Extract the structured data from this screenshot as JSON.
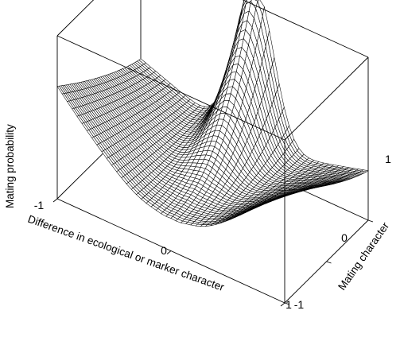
{
  "chart_data": {
    "type": "surface",
    "x_axis": {
      "label": "Difference in ecological or marker character",
      "range": [
        -1,
        1
      ],
      "ticks": [
        {
          "value": -1,
          "label": "-1"
        },
        {
          "value": 0,
          "label": "0"
        },
        {
          "value": 1,
          "label": "1"
        }
      ]
    },
    "y_axis": {
      "label": "Mating character",
      "range": [
        -1,
        1
      ],
      "ticks": [
        {
          "value": -1,
          "label": "-1"
        },
        {
          "value": 0,
          "label": "0"
        },
        {
          "value": 1,
          "label": "1"
        }
      ]
    },
    "z_axis": {
      "label": "Mating probability",
      "range": [
        0,
        1
      ]
    },
    "surface": {
      "grid_resolution": 46,
      "description_points": [
        {
          "x": -1,
          "y": 1,
          "z": 0.42
        },
        {
          "x": -1,
          "y": -1,
          "z": 0.45
        },
        {
          "x": 1,
          "y": -1,
          "z": 0.5
        },
        {
          "x": 0,
          "y": 1,
          "z": 0.95
        },
        {
          "x": 0,
          "y": 0,
          "z": 0.18
        },
        {
          "x": 1,
          "y": 1,
          "z": 0.25
        }
      ]
    },
    "grid": false,
    "box": true
  }
}
